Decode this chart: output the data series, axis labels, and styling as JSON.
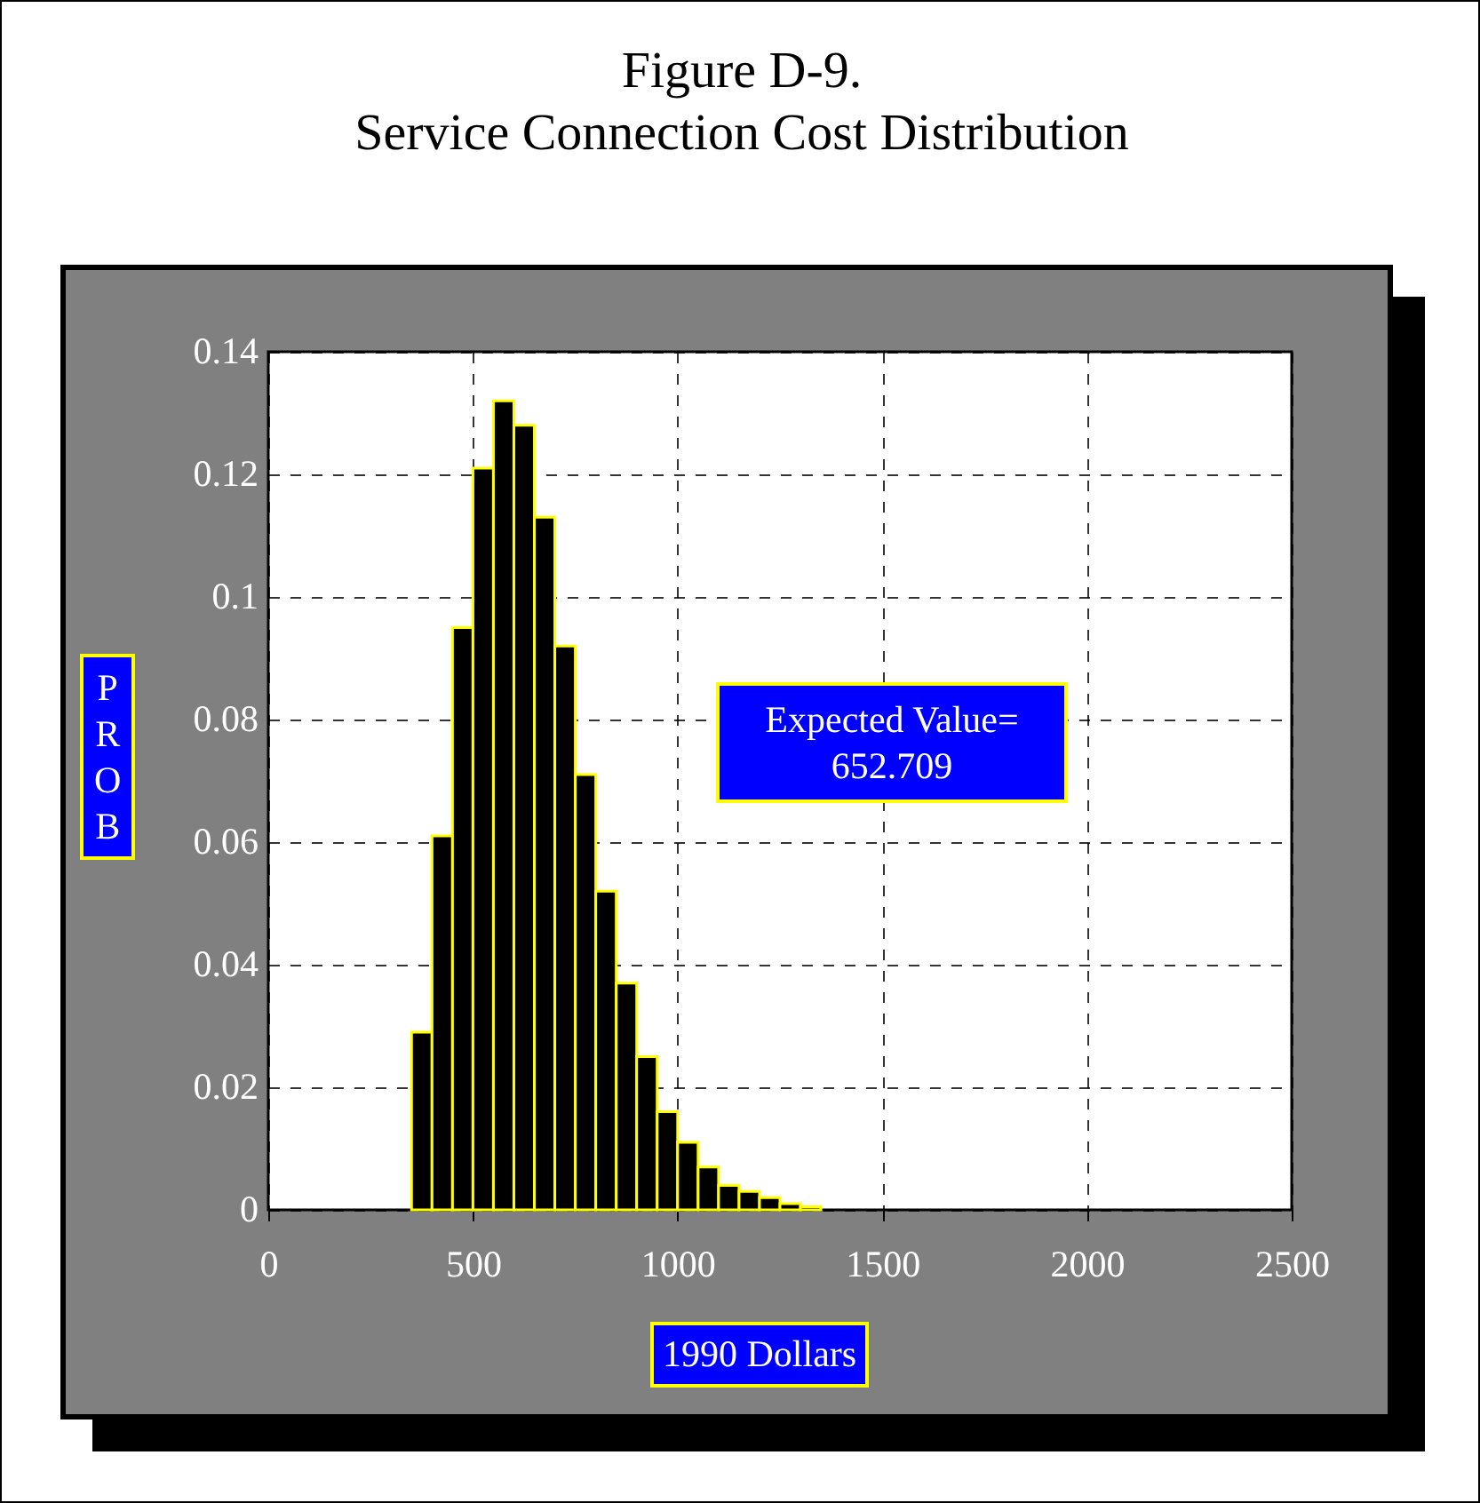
{
  "chart_data": {
    "type": "histogram",
    "title": "Figure D-9.\nService Connection Cost Distribution",
    "xlabel": "1990 Dollars",
    "ylabel": "PROB",
    "annotations": [
      "Expected Value=\n652.709"
    ],
    "bins": [
      350,
      400,
      450,
      500,
      550,
      600,
      650,
      700,
      750,
      800,
      850,
      900,
      950,
      1000,
      1050,
      1100,
      1150,
      1200,
      1250,
      1300,
      1350
    ],
    "values": [
      0.029,
      0.061,
      0.095,
      0.121,
      0.132,
      0.128,
      0.113,
      0.092,
      0.071,
      0.052,
      0.037,
      0.025,
      0.016,
      0.011,
      0.007,
      0.004,
      0.003,
      0.002,
      0.001,
      0.0005
    ],
    "color": "#000000",
    "xlim": [
      0,
      2500
    ],
    "xticks": [
      0,
      500,
      1000,
      1500,
      2000,
      2500
    ],
    "ylim": [
      0,
      0.14
    ],
    "yticks": [
      0,
      0.02,
      0.04,
      0.06,
      0.08,
      0.1,
      0.12,
      0.14
    ],
    "grid": true,
    "legend": false
  }
}
